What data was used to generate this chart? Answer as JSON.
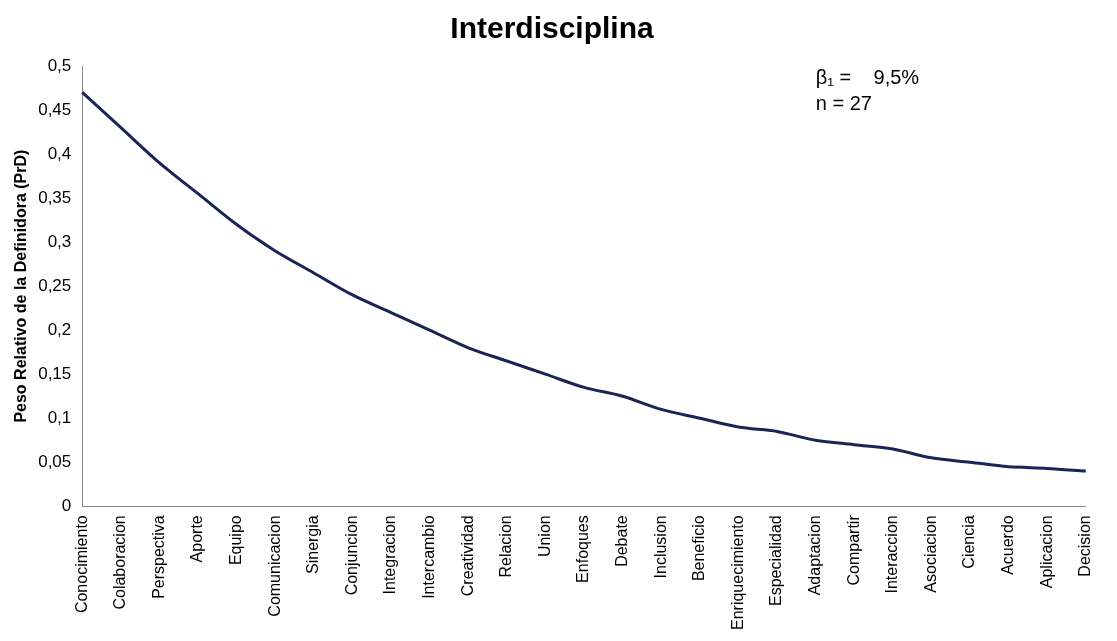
{
  "chart_data": {
    "type": "line",
    "title": "Interdisciplina",
    "ylabel": "Peso Relativo de la Definidora (PrD)",
    "categories": [
      "Conocimiento",
      "Colaboracion",
      "Perspectiva",
      "Aporte",
      "Equipo",
      "Comunicacion",
      "Sinergia",
      "Conjuncion",
      "Integracion",
      "Intercambio",
      "Creatividad",
      "Relacion",
      "Union",
      "Enfoques",
      "Debate",
      "Inclusion",
      "Beneficio",
      "Enriquecimiento",
      "Especialidad",
      "Adaptacion",
      "Compartir",
      "Interaccion",
      "Asociacion",
      "Ciencia",
      "Acuerdo",
      "Aplicacion",
      "Decision"
    ],
    "series": [
      {
        "color": "#1a2456",
        "values": [
          0.47,
          0.43,
          0.39,
          0.355,
          0.32,
          0.29,
          0.265,
          0.24,
          0.22,
          0.2,
          0.18,
          0.165,
          0.15,
          0.135,
          0.125,
          0.11,
          0.1,
          0.09,
          0.085,
          0.075,
          0.07,
          0.065,
          0.055,
          0.05,
          0.045,
          0.043,
          0.04
        ]
      }
    ],
    "ylim": [
      0,
      0.5
    ],
    "yticks": [
      0,
      {
        "value": 0.05,
        "label": "0,05"
      },
      {
        "value": 0.1,
        "label": "0,1"
      },
      {
        "value": 0.15,
        "label": "0,15"
      },
      {
        "value": 0.2,
        "label": "0,2"
      },
      {
        "value": 0.25,
        "label": "0,25"
      },
      {
        "value": 0.3,
        "label": "0,3"
      },
      {
        "value": 0.35,
        "label": "0,35"
      },
      {
        "value": 0.4,
        "label": "0,4"
      },
      {
        "value": 0.45,
        "label": "0,45"
      },
      {
        "value": 0.5,
        "label": "0,5"
      }
    ],
    "annotations": [
      "β₁ =    9,5%",
      "n = 27"
    ],
    "grid": false,
    "legend": false,
    "marker": "none",
    "line_style": "solid"
  }
}
